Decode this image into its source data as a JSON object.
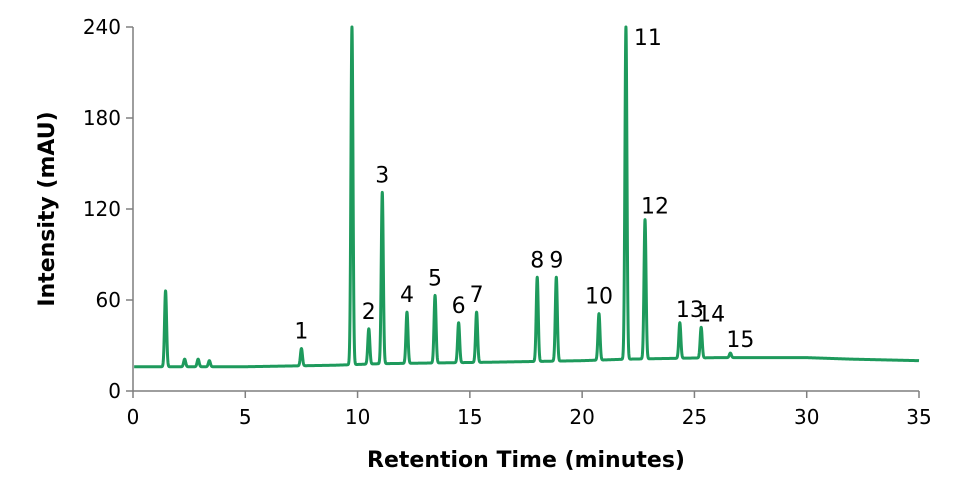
{
  "chart_data": {
    "type": "line",
    "title": "",
    "xlabel": "Retention Time (minutes)",
    "ylabel": "Intensity (mAU)",
    "xlim": [
      0,
      35
    ],
    "ylim": [
      0,
      240
    ],
    "x_ticks": [
      "0",
      "5",
      "10",
      "15",
      "20",
      "25",
      "30",
      "35"
    ],
    "y_ticks": [
      "0",
      "60",
      "120",
      "180",
      "240"
    ],
    "grid": false,
    "legend": "none",
    "line_color": "#1e9a5c",
    "baseline_points": [
      [
        0,
        16
      ],
      [
        5,
        16
      ],
      [
        9,
        17
      ],
      [
        11,
        18
      ],
      [
        16,
        19
      ],
      [
        20,
        20
      ],
      [
        22,
        21
      ],
      [
        26,
        22
      ],
      [
        30,
        22
      ],
      [
        32,
        21
      ],
      [
        35,
        20
      ]
    ],
    "peaks": [
      {
        "label": "",
        "rt": 1.45,
        "height": 66
      },
      {
        "label": "",
        "rt": 2.3,
        "height": 21
      },
      {
        "label": "",
        "rt": 2.9,
        "height": 21
      },
      {
        "label": "",
        "rt": 3.4,
        "height": 20
      },
      {
        "label": "1",
        "rt": 7.5,
        "height": 28
      },
      {
        "label": "",
        "rt": 9.75,
        "height": 240
      },
      {
        "label": "2",
        "rt": 10.5,
        "height": 41
      },
      {
        "label": "3",
        "rt": 11.1,
        "height": 131
      },
      {
        "label": "4",
        "rt": 12.2,
        "height": 52
      },
      {
        "label": "5",
        "rt": 13.45,
        "height": 63
      },
      {
        "label": "6",
        "rt": 14.5,
        "height": 45
      },
      {
        "label": "7",
        "rt": 15.3,
        "height": 52
      },
      {
        "label": "8",
        "rt": 18.0,
        "height": 75
      },
      {
        "label": "9",
        "rt": 18.85,
        "height": 75
      },
      {
        "label": "10",
        "rt": 20.75,
        "height": 51
      },
      {
        "label": "11",
        "rt": 21.95,
        "height": 240
      },
      {
        "label": "12",
        "rt": 22.8,
        "height": 113
      },
      {
        "label": "13",
        "rt": 24.35,
        "height": 45
      },
      {
        "label": "14",
        "rt": 25.3,
        "height": 42
      },
      {
        "label": "15",
        "rt": 26.6,
        "height": 25
      }
    ]
  }
}
